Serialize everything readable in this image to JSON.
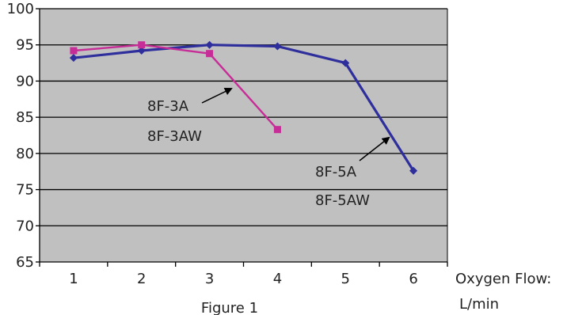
{
  "chart_data": {
    "type": "line",
    "x": [
      1,
      2,
      3,
      4,
      5,
      6
    ],
    "xlim": [
      0.5,
      6.5
    ],
    "ylim": [
      65,
      100
    ],
    "yticks": [
      65,
      70,
      75,
      80,
      85,
      90,
      95,
      100
    ],
    "grid": true,
    "series": [
      {
        "name": "",
        "color": "#2e2e9c",
        "marker": "diamond",
        "points": [
          [
            1,
            93.2
          ],
          [
            2,
            94.2
          ],
          [
            3,
            95.0
          ],
          [
            4,
            94.8
          ],
          [
            5,
            92.5
          ],
          [
            6,
            77.6
          ]
        ]
      },
      {
        "name": "",
        "color": "#c62d97",
        "marker": "square",
        "points": [
          [
            1,
            94.2
          ],
          [
            2,
            95.0
          ],
          [
            3,
            93.8
          ],
          [
            4,
            83.3
          ]
        ]
      }
    ],
    "annotations": [
      {
        "lines": [
          "8F-3A",
          "8F-3AW"
        ]
      },
      {
        "lines": [
          "8F-5A",
          "8F-5AW"
        ]
      }
    ],
    "xlabel_lines": [
      "Oxygen Flow:",
      "L/min"
    ],
    "caption": "Figure 1",
    "colors": {
      "plot_background": "#c0c0c0",
      "gridline": "#000000",
      "annotation_arrow": "#000000"
    }
  }
}
